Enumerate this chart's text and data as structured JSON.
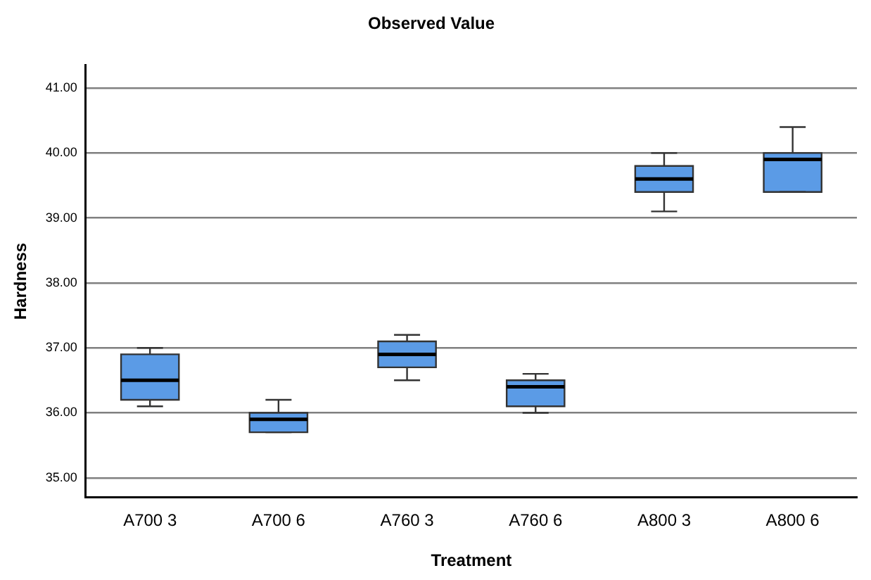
{
  "chart_data": {
    "type": "box",
    "title": "Observed Value",
    "xlabel": "Treatment",
    "ylabel": "Hardness",
    "categories": [
      "A700 3",
      "A700 6",
      "A760 3",
      "A760 6",
      "A800 3",
      "A800 6"
    ],
    "color": "#5b9be6",
    "boxes": [
      {
        "low": 36.1,
        "q1": 36.2,
        "median": 36.5,
        "q3": 36.9,
        "high": 37.0
      },
      {
        "low": 35.7,
        "q1": 35.7,
        "median": 35.9,
        "q3": 36.0,
        "high": 36.2
      },
      {
        "low": 36.5,
        "q1": 36.7,
        "median": 36.9,
        "q3": 37.1,
        "high": 37.2
      },
      {
        "low": 36.0,
        "q1": 36.1,
        "median": 36.4,
        "q3": 36.5,
        "high": 36.6
      },
      {
        "low": 39.1,
        "q1": 39.4,
        "median": 39.6,
        "q3": 39.8,
        "high": 40.0
      },
      {
        "low": 39.4,
        "q1": 39.4,
        "median": 39.9,
        "q3": 40.0,
        "high": 40.4
      }
    ],
    "ylim": [
      34.7,
      41.35
    ],
    "yticks": [
      {
        "value": 35,
        "label": "35.00"
      },
      {
        "value": 36,
        "label": "36.00"
      },
      {
        "value": 37,
        "label": "37.00"
      },
      {
        "value": 38,
        "label": "38.00"
      },
      {
        "value": 39,
        "label": "39.00"
      },
      {
        "value": 40,
        "label": "40.00"
      },
      {
        "value": 41,
        "label": "41.00"
      }
    ],
    "grid": "y",
    "legend": false
  }
}
